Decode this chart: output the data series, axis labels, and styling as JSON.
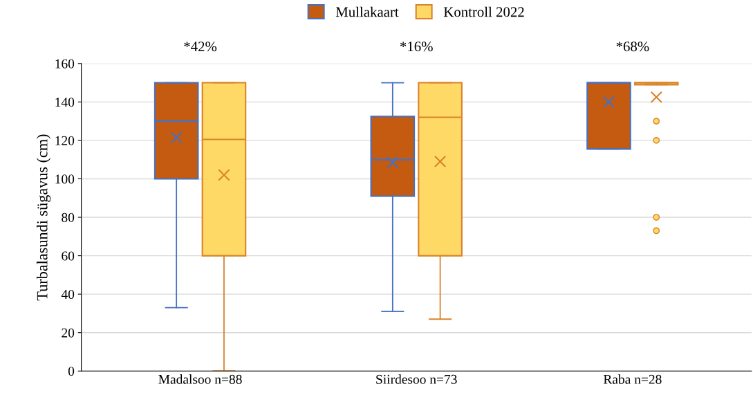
{
  "chart_data": {
    "type": "box",
    "ylabel": "Turbalasundi sügavus (cm)",
    "categories": [
      "Madalsoo n=88",
      "Siirdesoo n=73",
      "Raba n=28"
    ],
    "ylim": [
      0,
      160
    ],
    "yticks": [
      0,
      20,
      40,
      60,
      80,
      100,
      120,
      140,
      160
    ],
    "grid": "y",
    "legend": "top",
    "marker": "cross",
    "series": [
      {
        "name": "Mullakaart",
        "color": "#c55a11",
        "boxes": [
          {
            "low": 33,
            "q1": 100,
            "median": 130,
            "q3": 150,
            "high": 150,
            "mean": 121.5
          },
          {
            "low": 31,
            "q1": 91,
            "median": 110,
            "q3": 132.5,
            "high": 150,
            "mean": 108.5
          },
          {
            "low": 115.5,
            "q1": 115.5,
            "median": 150,
            "q3": 150,
            "high": 150,
            "mean": 140
          }
        ]
      },
      {
        "name": "Kontroll 2022",
        "color": "#ffd966",
        "boxes": [
          {
            "low": 0,
            "q1": 60,
            "median": 120.5,
            "q3": 150,
            "high": 150,
            "mean": 102
          },
          {
            "low": 27,
            "q1": 60,
            "median": 132,
            "q3": 150,
            "high": 150,
            "mean": 109
          },
          {
            "low": 149,
            "q1": 149,
            "median": 150,
            "q3": 150,
            "high": 150,
            "mean": 142.5,
            "outliers": [
              130,
              120,
              80,
              73
            ]
          }
        ]
      }
    ],
    "annotations": [
      "*42%",
      "*16%",
      "*68%"
    ]
  }
}
